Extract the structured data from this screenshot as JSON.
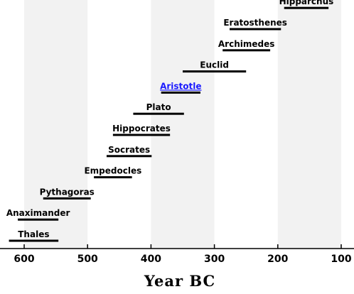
{
  "chart_data": {
    "type": "bar",
    "orientation": "horizontal-timeline",
    "title": "",
    "xlabel": "Year BC",
    "ylabel": "",
    "x_reversed": true,
    "xlim": [
      630,
      80
    ],
    "x_ticks": [
      600,
      500,
      400,
      300,
      200,
      100
    ],
    "alternating_bands": true,
    "band_color": "#f2f2f2",
    "bar_color": "#000000",
    "link_color": "#1a1aff",
    "grid": false,
    "series": [
      {
        "name": "Thales",
        "start": 624,
        "end": 546,
        "link": false
      },
      {
        "name": "Anaximander",
        "start": 610,
        "end": 546,
        "link": false
      },
      {
        "name": "Pythagoras",
        "start": 570,
        "end": 495,
        "link": false
      },
      {
        "name": "Empedocles",
        "start": 490,
        "end": 430,
        "link": false
      },
      {
        "name": "Socrates",
        "start": 470,
        "end": 399,
        "link": false
      },
      {
        "name": "Hippocrates",
        "start": 460,
        "end": 370,
        "link": false
      },
      {
        "name": "Plato",
        "start": 428,
        "end": 348,
        "link": false
      },
      {
        "name": "Aristotle",
        "start": 384,
        "end": 322,
        "link": true
      },
      {
        "name": "Euclid",
        "start": 350,
        "end": 250,
        "link": false
      },
      {
        "name": "Archimedes",
        "start": 287,
        "end": 212,
        "link": false
      },
      {
        "name": "Eratosthenes",
        "start": 276,
        "end": 195,
        "link": false
      },
      {
        "name": "Hipparchus",
        "start": 190,
        "end": 120,
        "link": false
      }
    ]
  }
}
